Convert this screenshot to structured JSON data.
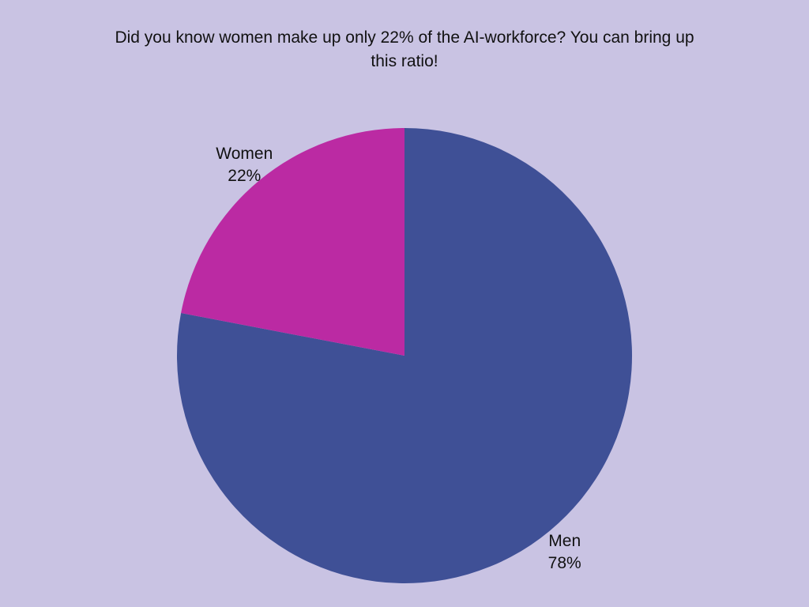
{
  "chart_data": {
    "type": "pie",
    "title": "Did you know women make up only 22% of the AI-workforce?  You can bring up this ratio!",
    "slices": [
      {
        "label": "Men",
        "value": 78,
        "percent_label": "78%",
        "color": "#3f5096"
      },
      {
        "label": "Women",
        "value": 22,
        "percent_label": "22%",
        "color": "#bb2aa3"
      }
    ],
    "background": "#c9c3e3"
  }
}
